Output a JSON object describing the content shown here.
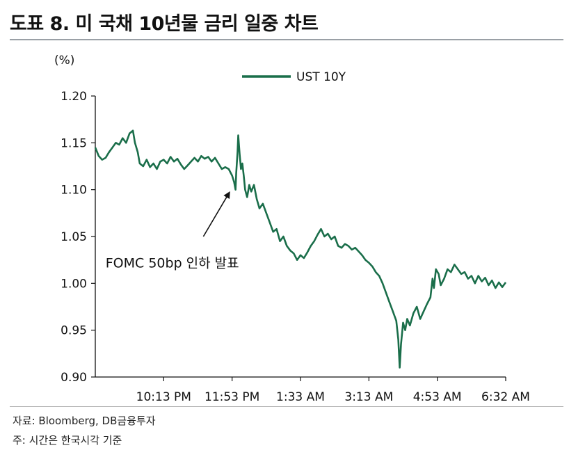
{
  "title": "도표 8. 미 국채 10년물 금리 일중 차트",
  "source": "자료: Bloomberg, DB금융투자",
  "note": "주: 시간은 한국시각 기준",
  "chart_data": {
    "type": "line",
    "unit_label": "(%)",
    "ylim": [
      0.9,
      1.2
    ],
    "y_ticks": [
      "1.20",
      "1.15",
      "1.10",
      "1.05",
      "1.00",
      "0.95",
      "0.90"
    ],
    "y_tick_values": [
      1.2,
      1.15,
      1.1,
      1.05,
      1.0,
      0.95,
      0.9
    ],
    "x_ticks": [
      "10:13 PM",
      "11:53 PM",
      "1:33 AM",
      "3:13 AM",
      "4:53 AM",
      "6:32 AM"
    ],
    "x_tick_values": [
      100,
      200,
      300,
      400,
      500,
      600
    ],
    "xlim": [
      0,
      600
    ],
    "grid": false,
    "legend_position": "top-center",
    "line_color": "#1a6e4a",
    "series": [
      {
        "name": "UST 10Y",
        "points": [
          [
            0,
            1.145
          ],
          [
            5,
            1.136
          ],
          [
            10,
            1.132
          ],
          [
            15,
            1.134
          ],
          [
            20,
            1.14
          ],
          [
            25,
            1.145
          ],
          [
            30,
            1.15
          ],
          [
            35,
            1.148
          ],
          [
            40,
            1.155
          ],
          [
            45,
            1.15
          ],
          [
            50,
            1.16
          ],
          [
            55,
            1.163
          ],
          [
            58,
            1.15
          ],
          [
            62,
            1.14
          ],
          [
            65,
            1.128
          ],
          [
            70,
            1.125
          ],
          [
            75,
            1.132
          ],
          [
            80,
            1.124
          ],
          [
            85,
            1.128
          ],
          [
            90,
            1.122
          ],
          [
            95,
            1.13
          ],
          [
            100,
            1.132
          ],
          [
            105,
            1.128
          ],
          [
            110,
            1.135
          ],
          [
            115,
            1.13
          ],
          [
            120,
            1.133
          ],
          [
            125,
            1.127
          ],
          [
            130,
            1.122
          ],
          [
            135,
            1.126
          ],
          [
            140,
            1.13
          ],
          [
            145,
            1.134
          ],
          [
            150,
            1.13
          ],
          [
            155,
            1.136
          ],
          [
            160,
            1.133
          ],
          [
            165,
            1.135
          ],
          [
            170,
            1.13
          ],
          [
            175,
            1.134
          ],
          [
            180,
            1.128
          ],
          [
            185,
            1.122
          ],
          [
            190,
            1.124
          ],
          [
            195,
            1.122
          ],
          [
            200,
            1.115
          ],
          [
            203,
            1.108
          ],
          [
            205,
            1.1
          ],
          [
            206,
            1.118
          ],
          [
            208,
            1.14
          ],
          [
            209,
            1.158
          ],
          [
            211,
            1.138
          ],
          [
            213,
            1.122
          ],
          [
            215,
            1.128
          ],
          [
            217,
            1.115
          ],
          [
            219,
            1.1
          ],
          [
            222,
            1.092
          ],
          [
            225,
            1.105
          ],
          [
            228,
            1.098
          ],
          [
            232,
            1.105
          ],
          [
            236,
            1.09
          ],
          [
            240,
            1.08
          ],
          [
            245,
            1.085
          ],
          [
            250,
            1.075
          ],
          [
            255,
            1.065
          ],
          [
            260,
            1.055
          ],
          [
            265,
            1.058
          ],
          [
            270,
            1.045
          ],
          [
            275,
            1.05
          ],
          [
            280,
            1.04
          ],
          [
            285,
            1.035
          ],
          [
            290,
            1.032
          ],
          [
            295,
            1.025
          ],
          [
            300,
            1.03
          ],
          [
            305,
            1.027
          ],
          [
            310,
            1.033
          ],
          [
            315,
            1.04
          ],
          [
            320,
            1.045
          ],
          [
            325,
            1.052
          ],
          [
            330,
            1.058
          ],
          [
            335,
            1.05
          ],
          [
            340,
            1.053
          ],
          [
            345,
            1.047
          ],
          [
            350,
            1.05
          ],
          [
            355,
            1.04
          ],
          [
            360,
            1.038
          ],
          [
            365,
            1.042
          ],
          [
            370,
            1.04
          ],
          [
            375,
            1.036
          ],
          [
            380,
            1.038
          ],
          [
            385,
            1.034
          ],
          [
            390,
            1.03
          ],
          [
            395,
            1.025
          ],
          [
            400,
            1.022
          ],
          [
            405,
            1.018
          ],
          [
            410,
            1.012
          ],
          [
            415,
            1.008
          ],
          [
            420,
            1.0
          ],
          [
            425,
            0.99
          ],
          [
            430,
            0.98
          ],
          [
            435,
            0.97
          ],
          [
            440,
            0.96
          ],
          [
            443,
            0.94
          ],
          [
            445,
            0.91
          ],
          [
            447,
            0.935
          ],
          [
            450,
            0.958
          ],
          [
            453,
            0.95
          ],
          [
            456,
            0.962
          ],
          [
            460,
            0.955
          ],
          [
            465,
            0.968
          ],
          [
            470,
            0.975
          ],
          [
            475,
            0.962
          ],
          [
            480,
            0.97
          ],
          [
            485,
            0.978
          ],
          [
            490,
            0.985
          ],
          [
            493,
            1.005
          ],
          [
            495,
            0.995
          ],
          [
            498,
            1.015
          ],
          [
            502,
            1.01
          ],
          [
            505,
            0.998
          ],
          [
            510,
            1.005
          ],
          [
            515,
            1.015
          ],
          [
            520,
            1.012
          ],
          [
            525,
            1.02
          ],
          [
            530,
            1.015
          ],
          [
            535,
            1.01
          ],
          [
            540,
            1.012
          ],
          [
            545,
            1.005
          ],
          [
            550,
            1.008
          ],
          [
            555,
            1.0
          ],
          [
            560,
            1.008
          ],
          [
            565,
            1.002
          ],
          [
            570,
            1.006
          ],
          [
            575,
            0.998
          ],
          [
            580,
            1.003
          ],
          [
            585,
            0.995
          ],
          [
            590,
            1.001
          ],
          [
            595,
            0.996
          ],
          [
            600,
            1.001
          ]
        ]
      }
    ],
    "annotation": {
      "text": "FOMC 50bp 인하 발표",
      "target": [
        196,
        1.097
      ],
      "arrow_tail": [
        158,
        1.05
      ],
      "text_anchor": [
        15,
        1.017
      ]
    }
  }
}
